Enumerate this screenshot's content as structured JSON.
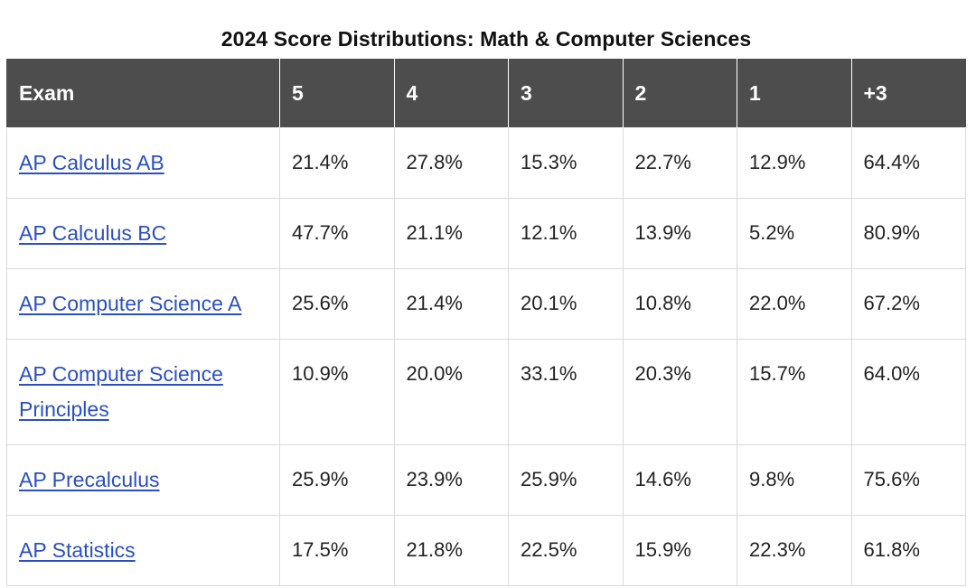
{
  "title": "2024 Score Distributions: Math & Computer Sciences",
  "table": {
    "headers": [
      "Exam",
      "5",
      "4",
      "3",
      "2",
      "1",
      "+3"
    ],
    "rows": [
      {
        "exam": "AP Calculus AB",
        "values": [
          "21.4%",
          "27.8%",
          "15.3%",
          "22.7%",
          "12.9%",
          "64.4%"
        ]
      },
      {
        "exam": "AP Calculus BC",
        "values": [
          "47.7%",
          "21.1%",
          "12.1%",
          "13.9%",
          "5.2%",
          "80.9%"
        ]
      },
      {
        "exam": "AP Computer Science A",
        "values": [
          "25.6%",
          "21.4%",
          "20.1%",
          "10.8%",
          "22.0%",
          "67.2%"
        ]
      },
      {
        "exam": "AP Computer Science Principles",
        "values": [
          "10.9%",
          "20.0%",
          "33.1%",
          "20.3%",
          "15.7%",
          "64.0%"
        ]
      },
      {
        "exam": "AP Precalculus",
        "values": [
          "25.9%",
          "23.9%",
          "25.9%",
          "14.6%",
          "9.8%",
          "75.6%"
        ]
      },
      {
        "exam": "AP Statistics",
        "values": [
          "17.5%",
          "21.8%",
          "22.5%",
          "15.9%",
          "22.3%",
          "61.8%"
        ]
      }
    ]
  },
  "colors": {
    "header_bg": "#4d4d4d",
    "header_text": "#ffffff",
    "link": "#2a4fc4",
    "border": "#d9d9d9"
  }
}
